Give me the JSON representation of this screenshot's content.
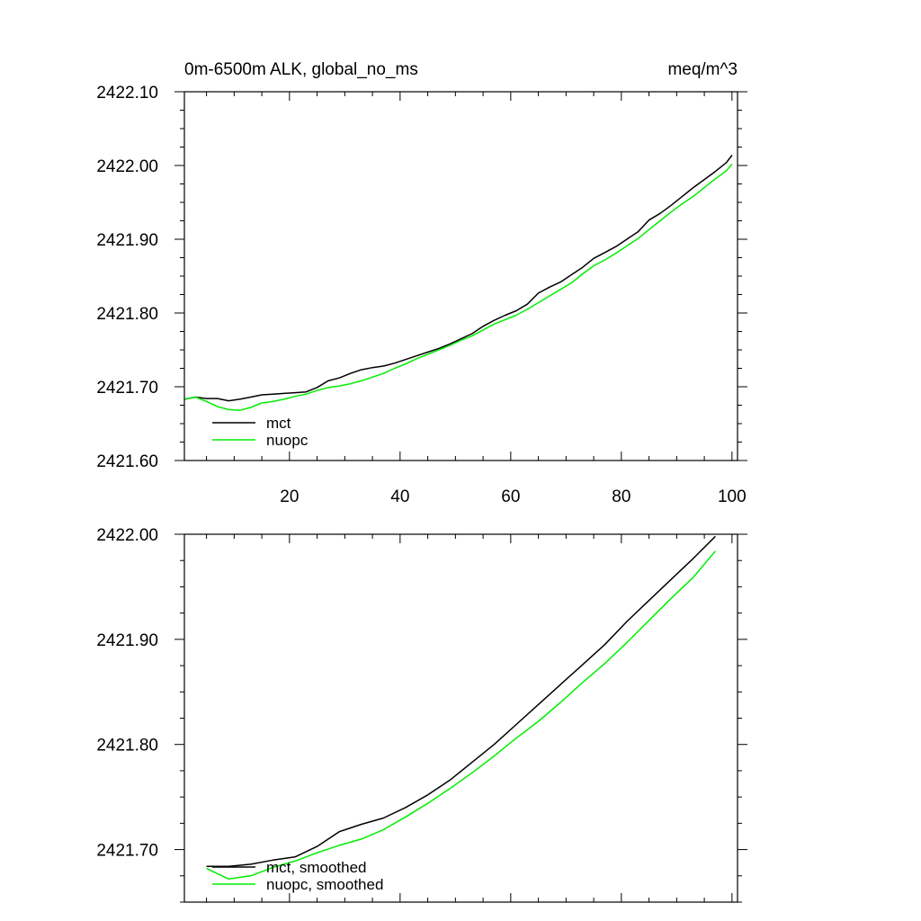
{
  "chart_data": [
    {
      "type": "line",
      "title_left": "0m-6500m ALK, global_no_ms",
      "title_right": "meq/m^3",
      "xlabel": "",
      "ylabel": "",
      "xlim": [
        1,
        101
      ],
      "ylim": [
        2421.6,
        2422.1
      ],
      "xticks": [
        20,
        40,
        60,
        80,
        100
      ],
      "xtick_labels": [
        "20",
        "40",
        "60",
        "80",
        "100"
      ],
      "yticks": [
        2421.6,
        2421.7,
        2421.8,
        2421.9,
        2422.0,
        2422.1
      ],
      "ytick_labels": [
        "2421.60",
        "2421.70",
        "2421.80",
        "2421.90",
        "2422.00",
        "2422.10"
      ],
      "legend": "bottom-left",
      "series": [
        {
          "name": "mct",
          "color": "#000000",
          "x": [
            1,
            3,
            5,
            7,
            9,
            11,
            13,
            15,
            17,
            19,
            21,
            23,
            25,
            27,
            29,
            31,
            33,
            35,
            37,
            39,
            41,
            43,
            45,
            47,
            49,
            51,
            53,
            55,
            57,
            59,
            61,
            63,
            65,
            67,
            69,
            71,
            73,
            75,
            77,
            79,
            81,
            83,
            85,
            87,
            89,
            91,
            93,
            95,
            97,
            99,
            100
          ],
          "values": [
            2421.683,
            2421.686,
            2421.684,
            2421.684,
            2421.681,
            2421.683,
            2421.686,
            2421.689,
            2421.69,
            2421.691,
            2421.692,
            2421.693,
            2421.699,
            2421.708,
            2421.712,
            2421.718,
            2421.723,
            2421.726,
            2421.728,
            2421.732,
            2421.737,
            2421.742,
            2421.747,
            2421.752,
            2421.758,
            2421.765,
            2421.772,
            2421.782,
            2421.79,
            2421.797,
            2421.803,
            2421.812,
            2421.827,
            2421.835,
            2421.842,
            2421.852,
            2421.862,
            2421.874,
            2421.882,
            2421.89,
            2421.9,
            2421.91,
            2421.926,
            2421.935,
            2421.946,
            2421.958,
            2421.97,
            2421.981,
            2421.992,
            2422.004,
            2422.014
          ]
        },
        {
          "name": "nuopc",
          "color": "#00ee00",
          "x": [
            1,
            3,
            5,
            7,
            9,
            11,
            13,
            15,
            17,
            19,
            21,
            23,
            25,
            27,
            29,
            31,
            33,
            35,
            37,
            39,
            41,
            43,
            45,
            47,
            49,
            51,
            53,
            55,
            57,
            59,
            61,
            63,
            65,
            67,
            69,
            71,
            73,
            75,
            77,
            79,
            81,
            83,
            85,
            87,
            89,
            91,
            93,
            95,
            97,
            99,
            100
          ],
          "values": [
            2421.683,
            2421.686,
            2421.68,
            2421.673,
            2421.669,
            2421.668,
            2421.672,
            2421.678,
            2421.68,
            2421.683,
            2421.687,
            2421.69,
            2421.695,
            2421.699,
            2421.701,
            2421.704,
            2421.708,
            2421.713,
            2421.718,
            2421.725,
            2421.731,
            2421.738,
            2421.744,
            2421.75,
            2421.756,
            2421.763,
            2421.769,
            2421.777,
            2421.785,
            2421.791,
            2421.797,
            2421.805,
            2421.814,
            2421.823,
            2421.832,
            2421.841,
            2421.853,
            2421.864,
            2421.872,
            2421.881,
            2421.891,
            2421.901,
            2421.913,
            2421.925,
            2421.937,
            2421.948,
            2421.958,
            2421.97,
            2421.982,
            2421.993,
            2422.002
          ]
        }
      ]
    },
    {
      "type": "line",
      "xlim": [
        1,
        101
      ],
      "ylim": [
        2421.65,
        2422.0
      ],
      "xticks": [
        20,
        40,
        60,
        80,
        100
      ],
      "yticks": [
        2421.7,
        2421.8,
        2421.9,
        2422.0
      ],
      "ytick_labels": [
        "2421.70",
        "2421.80",
        "2421.90",
        "2422.00"
      ],
      "legend": "bottom-left",
      "series": [
        {
          "name": "mct, smoothed",
          "color": "#000000",
          "x": [
            5,
            9,
            13,
            17,
            21,
            25,
            29,
            33,
            37,
            41,
            45,
            49,
            53,
            57,
            61,
            65,
            69,
            73,
            77,
            81,
            85,
            89,
            93,
            97
          ],
          "values": [
            2421.684,
            2421.684,
            2421.686,
            2421.69,
            2421.693,
            2421.703,
            2421.717,
            2421.724,
            2421.73,
            2421.74,
            2421.752,
            2421.766,
            2421.783,
            2421.8,
            2421.819,
            2421.838,
            2421.857,
            2421.876,
            2421.895,
            2421.917,
            2421.937,
            2421.957,
            2421.977,
            2421.998
          ]
        },
        {
          "name": "nuopc, smoothed",
          "color": "#00ee00",
          "x": [
            5,
            9,
            13,
            17,
            21,
            25,
            29,
            33,
            37,
            41,
            45,
            49,
            53,
            57,
            61,
            65,
            69,
            73,
            77,
            81,
            85,
            89,
            93,
            97
          ],
          "values": [
            2421.682,
            2421.672,
            2421.675,
            2421.683,
            2421.689,
            2421.697,
            2421.704,
            2421.71,
            2421.719,
            2421.731,
            2421.744,
            2421.758,
            2421.773,
            2421.789,
            2421.806,
            2421.822,
            2421.84,
            2421.859,
            2421.877,
            2421.897,
            2421.918,
            2421.939,
            2421.959,
            2421.984
          ]
        }
      ]
    }
  ]
}
